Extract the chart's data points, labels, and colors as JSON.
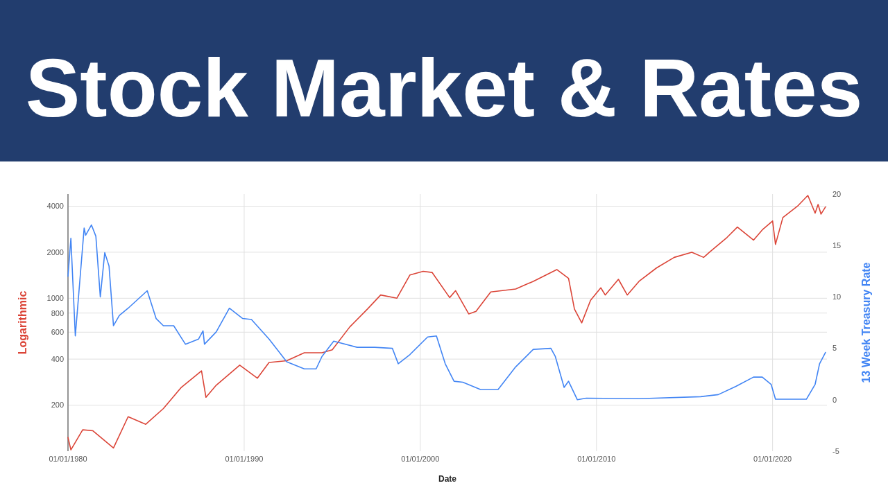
{
  "chart_data": {
    "type": "line",
    "title": "Stock Market & Rates",
    "xlabel": "Date",
    "ylabel": "Logarithmic",
    "y2label": "13 Week Treasury Rate",
    "log": "y",
    "grid": true,
    "line_style": "solid",
    "xlim": [
      "1980-01-01",
      "2023-02-01"
    ],
    "xticks": [
      {
        "value": "1980-01-01",
        "label": "01/01/1980"
      },
      {
        "value": "1990-01-01",
        "label": "01/01/1990"
      },
      {
        "value": "2000-01-01",
        "label": "01/01/2000"
      },
      {
        "value": "2010-01-01",
        "label": "01/01/2010"
      },
      {
        "value": "2020-01-01",
        "label": "01/01/2020"
      }
    ],
    "ylim": [
      100,
      4800
    ],
    "yticks": [
      200,
      400,
      600,
      800,
      1000,
      2000,
      4000
    ],
    "y2lim": [
      -5,
      20
    ],
    "y2ticks": [
      -5,
      0,
      5,
      10,
      15,
      20
    ],
    "series": [
      {
        "color": "#db4437",
        "axis": "y",
        "x": [
          "1980-01",
          "1980-03",
          "1980-11",
          "1981-06",
          "1982-08",
          "1983-06",
          "1984-06",
          "1985-06",
          "1986-06",
          "1987-08",
          "1987-11",
          "1988-06",
          "1989-10",
          "1990-10",
          "1991-06",
          "1992-06",
          "1993-06",
          "1994-06",
          "1995-01",
          "1996-01",
          "1997-01",
          "1997-10",
          "1998-09",
          "1999-06",
          "2000-03",
          "2000-09",
          "2001-09",
          "2002-01",
          "2002-10",
          "2003-03",
          "2004-01",
          "2005-06",
          "2006-06",
          "2007-10",
          "2008-06",
          "2008-10",
          "2009-03",
          "2009-09",
          "2010-04",
          "2010-07",
          "2011-04",
          "2011-10",
          "2012-06",
          "2013-06",
          "2014-06",
          "2015-06",
          "2016-02",
          "2016-06",
          "2017-06",
          "2018-01",
          "2018-12",
          "2019-06",
          "2020-01",
          "2020-03",
          "2020-08",
          "2021-06",
          "2022-01",
          "2022-06",
          "2022-08",
          "2022-10",
          "2023-01"
        ],
        "values": [
          123,
          102,
          138,
          136,
          105,
          168,
          150,
          190,
          260,
          335,
          225,
          270,
          365,
          300,
          380,
          390,
          440,
          440,
          460,
          650,
          850,
          1050,
          1000,
          1420,
          1500,
          1475,
          1010,
          1120,
          790,
          820,
          1100,
          1150,
          1290,
          1540,
          1350,
          850,
          690,
          970,
          1170,
          1050,
          1330,
          1050,
          1290,
          1580,
          1850,
          2000,
          1850,
          2000,
          2500,
          2920,
          2400,
          2800,
          3200,
          2250,
          3370,
          4000,
          4700,
          3600,
          4100,
          3550,
          3950
        ]
      },
      {
        "color": "#4285f4",
        "axis": "y2",
        "x": [
          "1980-01",
          "1980-03",
          "1980-06",
          "1980-12",
          "1981-01",
          "1981-05",
          "1981-08",
          "1981-11",
          "1982-02",
          "1982-05",
          "1982-08",
          "1982-12",
          "1983-06",
          "1984-07",
          "1985-01",
          "1985-06",
          "1986-01",
          "1986-09",
          "1987-06",
          "1987-09",
          "1987-10",
          "1988-06",
          "1989-03",
          "1989-12",
          "1990-06",
          "1991-06",
          "1992-06",
          "1993-06",
          "1994-02",
          "1994-06",
          "1995-02",
          "1996-06",
          "1997-06",
          "1998-06",
          "1998-10",
          "1999-06",
          "2000-06",
          "2000-12",
          "2001-06",
          "2001-12",
          "2002-06",
          "2003-06",
          "2004-06",
          "2005-06",
          "2006-06",
          "2007-06",
          "2007-09",
          "2008-03",
          "2008-06",
          "2008-12",
          "2009-06",
          "2012-06",
          "2015-12",
          "2016-12",
          "2017-12",
          "2018-12",
          "2019-06",
          "2019-12",
          "2020-03",
          "2021-12",
          "2022-06",
          "2022-09",
          "2023-01"
        ],
        "values": [
          12,
          15.7,
          6.2,
          16.7,
          16,
          17,
          15.9,
          10,
          14.3,
          13,
          7.2,
          8.2,
          8.9,
          10.6,
          7.9,
          7.2,
          7.2,
          5.4,
          5.9,
          6.7,
          5.4,
          6.6,
          8.9,
          7.9,
          7.8,
          5.9,
          3.7,
          3,
          3,
          4.2,
          5.7,
          5.1,
          5.1,
          5,
          3.5,
          4.4,
          6.1,
          6.2,
          3.5,
          1.8,
          1.7,
          1,
          1,
          3.2,
          4.9,
          5,
          4.2,
          1.2,
          1.8,
          0,
          0.15,
          0.1,
          0.3,
          0.5,
          1.3,
          2.2,
          2.2,
          1.5,
          0.05,
          0.05,
          1.5,
          3.5,
          4.6
        ]
      }
    ]
  }
}
